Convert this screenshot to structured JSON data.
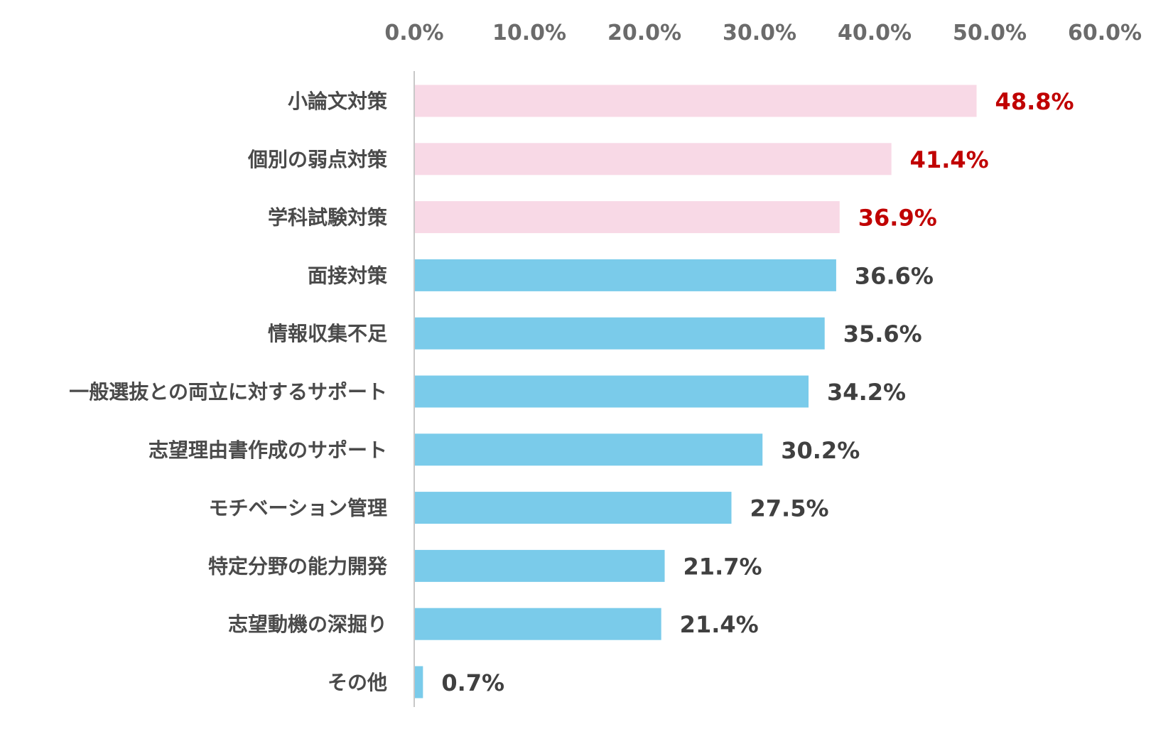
{
  "chart_data": {
    "type": "bar",
    "orientation": "horizontal",
    "title": "",
    "xlabel": "",
    "ylabel": "",
    "xlim": [
      0,
      60
    ],
    "ticks": [
      "0.0%",
      "10.0%",
      "20.0%",
      "30.0%",
      "40.0%",
      "50.0%",
      "60.0%"
    ],
    "tick_values": [
      0,
      10,
      20,
      30,
      40,
      50,
      60
    ],
    "axis_position": "top",
    "grid": false,
    "legend": "none",
    "categories": [
      "小論文対策",
      "個別の弱点対策",
      "学科試験対策",
      "面接対策",
      "情報収集不足",
      "一般選抜との両立に対するサポート",
      "志望理由書作成のサポート",
      "モチベーション管理",
      "特定分野の能力開発",
      "志望動機の深掘り",
      "その他"
    ],
    "values": [
      48.8,
      41.4,
      36.9,
      36.6,
      35.6,
      34.2,
      30.2,
      27.5,
      21.7,
      21.4,
      0.7
    ],
    "value_labels": [
      "48.8%",
      "41.4%",
      "36.9%",
      "36.6%",
      "35.6%",
      "34.2%",
      "30.2%",
      "27.5%",
      "21.7%",
      "21.4%",
      "0.7%"
    ],
    "highlighted": [
      true,
      true,
      true,
      false,
      false,
      false,
      false,
      false,
      false,
      false,
      false
    ]
  },
  "colors": {
    "highlight_bar": "#f8d9e6",
    "normal_bar": "#7acbea",
    "highlight_label": "#c00000",
    "normal_label": "#404040",
    "axis_line": "#c8c8c8"
  }
}
